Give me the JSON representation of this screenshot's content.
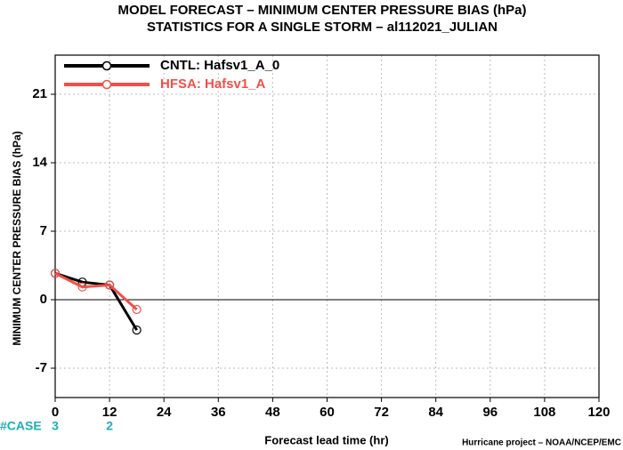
{
  "chart_data": {
    "type": "line",
    "title": "MODEL FORECAST – MINIMUM CENTER PRESSURE BIAS (hPa)",
    "subtitle": "STATISTICS FOR A SINGLE STORM – al112021_JULIAN",
    "xlabel": "Forecast lead time (hr)",
    "ylabel": "MINIMUM CENTER PRESSURE BIAS (hPa)",
    "credit": "Hurricane project – NOAA/NCEP/EMC",
    "x": [
      0,
      6,
      12,
      18
    ],
    "series": [
      {
        "name": "CNTL: Hafsv1_A_0",
        "color": "#000000",
        "values": [
          2.7,
          1.8,
          1.5,
          -3.1
        ]
      },
      {
        "name": "HFSA: Hafsv1_A",
        "color": "#f0504a",
        "values": [
          2.7,
          1.3,
          1.5,
          -1.0
        ]
      }
    ],
    "xlim": [
      0,
      120
    ],
    "xticks": [
      0,
      12,
      24,
      36,
      48,
      60,
      72,
      84,
      96,
      108,
      120
    ],
    "ylim": [
      -10,
      25
    ],
    "yticks": [
      -7,
      0,
      7,
      14,
      21
    ],
    "grid": true,
    "legend": "upper left",
    "cases": {
      "label": "#CASE",
      "x": [
        0,
        12
      ],
      "values": [
        3,
        2
      ],
      "color": "#1ab0b8"
    }
  }
}
